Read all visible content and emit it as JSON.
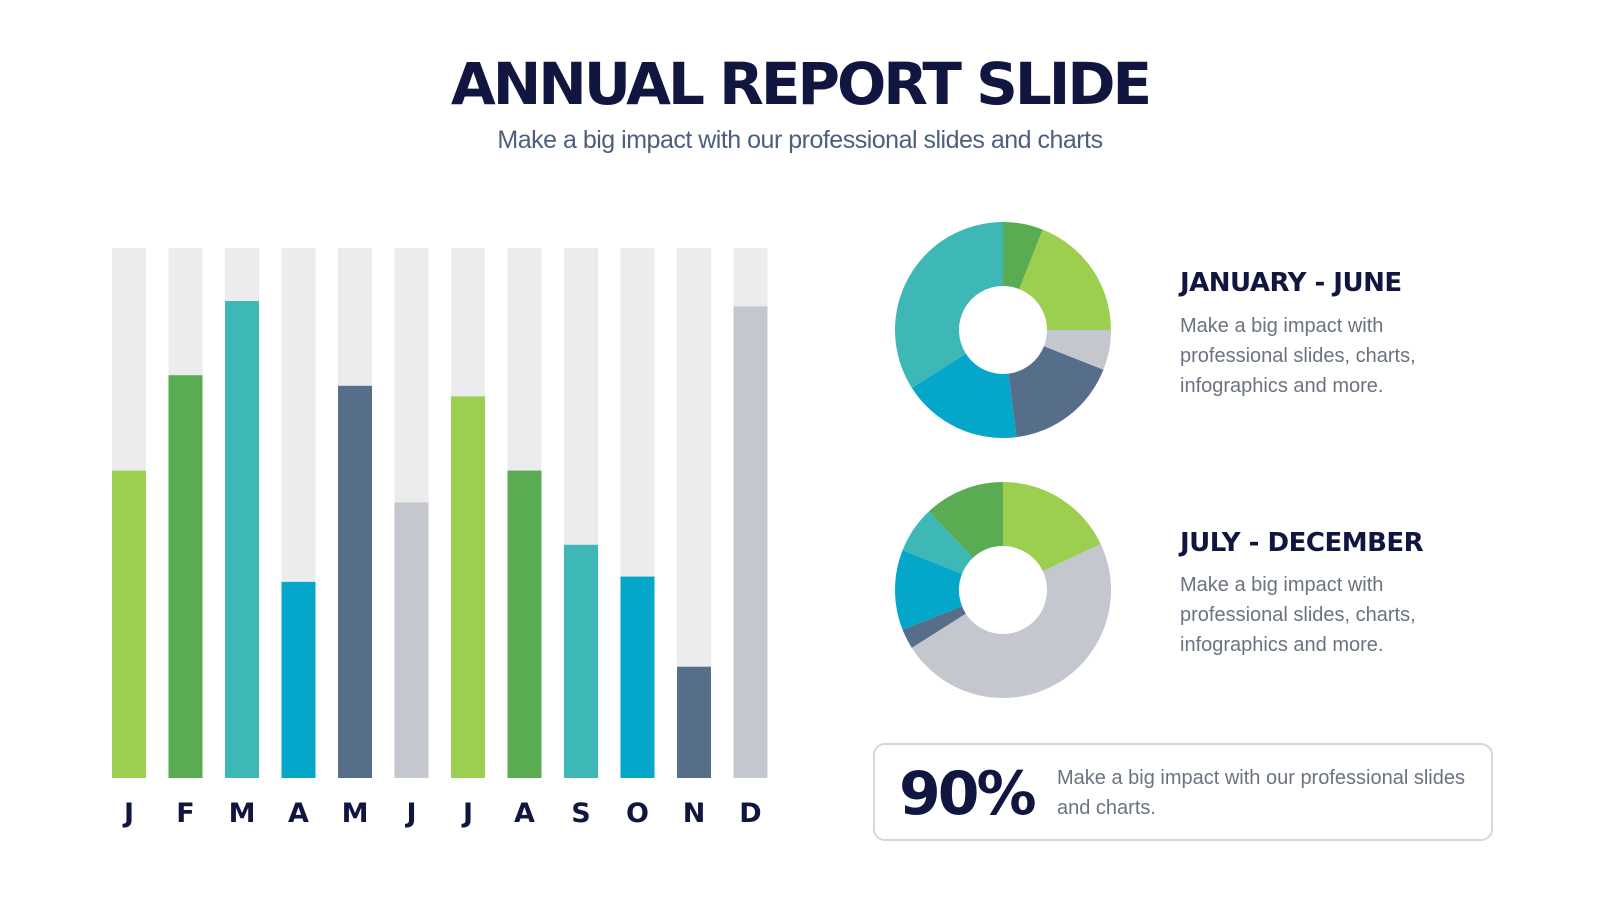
{
  "header": {
    "title": "ANNUAL REPORT SLIDE",
    "subtitle": "Make a big impact with our professional slides and charts"
  },
  "colors": {
    "navy": "#111640",
    "track": "#ececee",
    "light_green": "#9ccf4f",
    "green": "#5aac52",
    "teal": "#3db8b6",
    "cyan": "#04a7c9",
    "slate": "#566e8a",
    "gray": "#c4c8ce"
  },
  "chart_data": [
    {
      "type": "bar",
      "title": "",
      "xlabel": "",
      "ylabel": "",
      "ylim": [
        0,
        100
      ],
      "grid": false,
      "categories": [
        "J",
        "F",
        "M",
        "A",
        "M",
        "J",
        "J",
        "A",
        "S",
        "O",
        "N",
        "D"
      ],
      "values": [
        58,
        76,
        90,
        37,
        74,
        52,
        72,
        58,
        44,
        38,
        21,
        89
      ],
      "colors": [
        "#9ccf4f",
        "#5aac52",
        "#3db8b6",
        "#04a7c9",
        "#566e8a",
        "#c4c8ce",
        "#9ccf4f",
        "#5aac52",
        "#3db8b6",
        "#04a7c9",
        "#566e8a",
        "#c4c8ce"
      ]
    },
    {
      "type": "pie",
      "title": "JANUARY - JUNE",
      "donut": true,
      "values": [
        6,
        19,
        6,
        17,
        18,
        34
      ],
      "colors": [
        "#5aac52",
        "#9ccf4f",
        "#c4c8ce",
        "#566e8a",
        "#04a7c9",
        "#3db8b6"
      ]
    },
    {
      "type": "pie",
      "title": "JULY - DECEMBER",
      "donut": true,
      "values": [
        18,
        48,
        3,
        12,
        7,
        12
      ],
      "colors": [
        "#9ccf4f",
        "#c4c8ce",
        "#566e8a",
        "#04a7c9",
        "#3db8b6",
        "#5aac52"
      ]
    }
  ],
  "panels": [
    {
      "heading": "JANUARY - JUNE",
      "text": "Make a big impact with professional slides, charts, infographics and more."
    },
    {
      "heading": "JULY - DECEMBER",
      "text": "Make a big impact with professional slides, charts, infographics and more."
    }
  ],
  "stat": {
    "value": "90%",
    "text": "Make a big impact with our professional slides and charts."
  }
}
